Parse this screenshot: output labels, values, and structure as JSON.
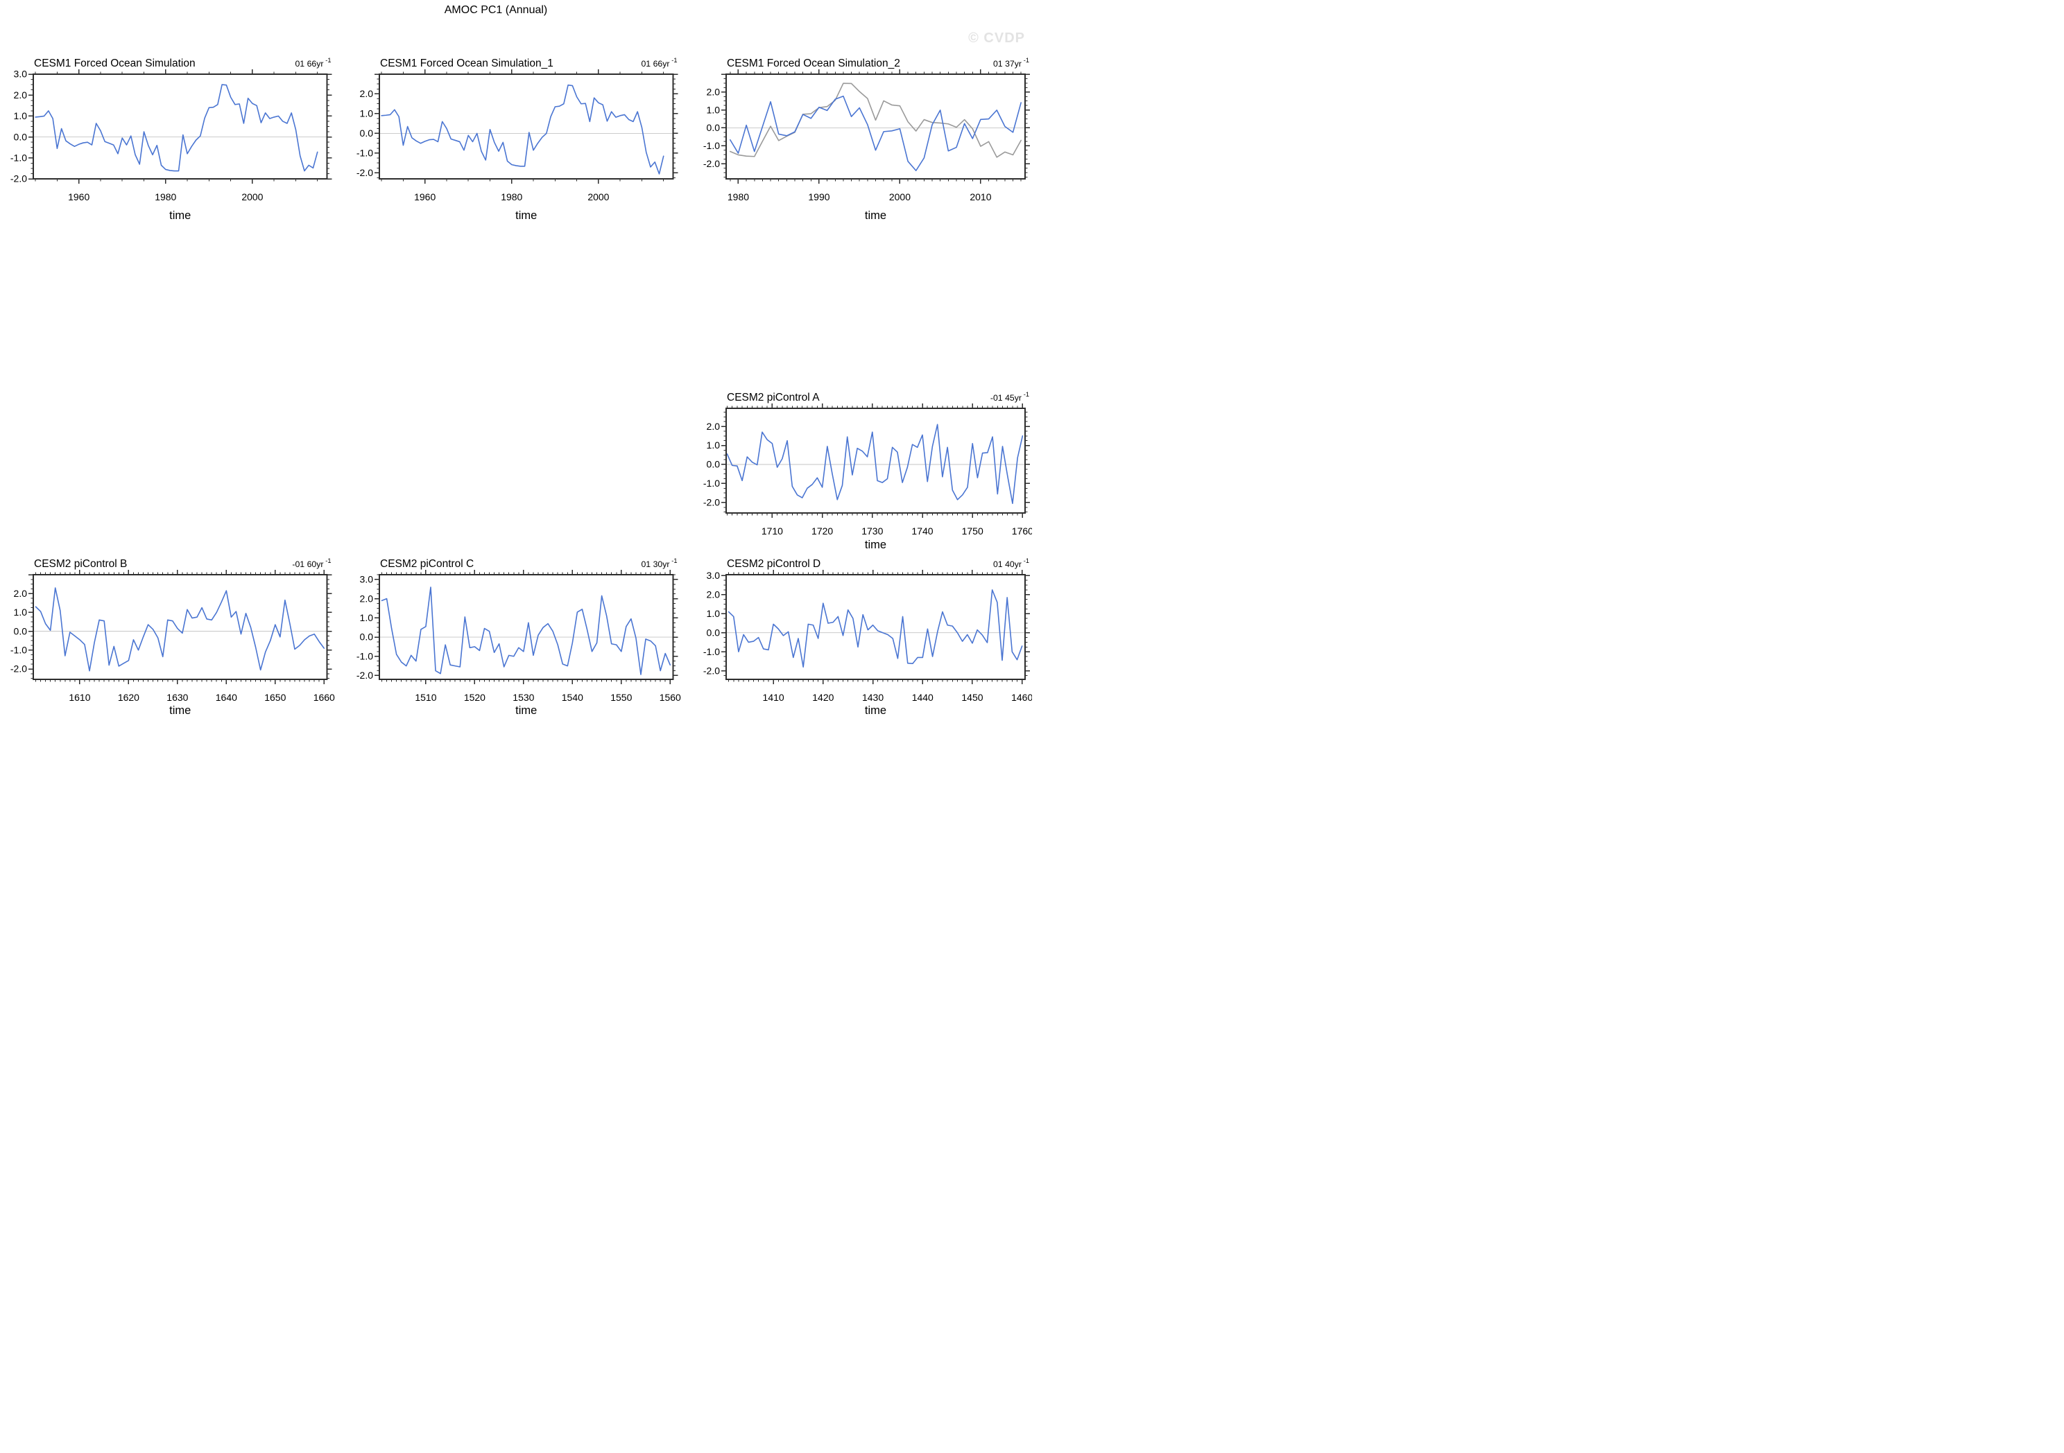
{
  "page": {
    "title": "AMOC PC1 (Annual)",
    "watermark": "© CVDP"
  },
  "colors": {
    "line_blue": "#4a75d2",
    "line_gray": "#9a9a9a",
    "zero_line": "#c4c4c4",
    "axis": "#2d2d2d",
    "watermark": "#e3e3e3"
  },
  "chart_data": [
    {
      "type": "line",
      "title": "CESM1 Forced Ocean Simulation",
      "corner_label": "01 66yr",
      "corner_sup": "-1",
      "xlabel": "time",
      "xlim": [
        1949.5,
        2017.2
      ],
      "xticks": [
        1960,
        1980,
        2000
      ],
      "x_minor_step": 5,
      "ylim": [
        -2.0,
        3.0
      ],
      "yticks": [
        3.0,
        2.0,
        1.0,
        0.0,
        -1.0,
        -2.0
      ],
      "y_minor_step": 0.25,
      "grid": "zero-line-only",
      "legend": "none",
      "series": [
        {
          "name": "blue",
          "color": "#4a75d2",
          "x_start": 1950,
          "x_step": 1,
          "values": [
            0.95,
            0.97,
            1.0,
            1.25,
            0.88,
            -0.55,
            0.4,
            -0.18,
            -0.33,
            -0.45,
            -0.35,
            -0.28,
            -0.25,
            -0.38,
            0.65,
            0.3,
            -0.22,
            -0.3,
            -0.38,
            -0.8,
            -0.05,
            -0.38,
            0.05,
            -0.85,
            -1.3,
            0.25,
            -0.4,
            -0.85,
            -0.4,
            -1.35,
            -1.55,
            -1.6,
            -1.62,
            -1.62,
            0.1,
            -0.8,
            -0.45,
            -0.15,
            0.05,
            0.9,
            1.4,
            1.42,
            1.55,
            2.5,
            2.48,
            1.9,
            1.55,
            1.58,
            0.65,
            1.85,
            1.6,
            1.5,
            0.68,
            1.15,
            0.88,
            0.95,
            1.0,
            0.75,
            0.65,
            1.15,
            0.35,
            -0.9,
            -1.62,
            -1.35,
            -1.48,
            -0.72
          ]
        }
      ]
    },
    {
      "type": "line",
      "title": "CESM1 Forced Ocean Simulation_1",
      "corner_label": "01 66yr",
      "corner_sup": "-1",
      "xlabel": "time",
      "xlim": [
        1949.5,
        2017.2
      ],
      "xticks": [
        1960,
        1980,
        2000
      ],
      "x_minor_step": 5,
      "ylim": [
        -2.3,
        3.0
      ],
      "yticks": [
        2.0,
        1.0,
        0.0,
        -1.0,
        -2.0
      ],
      "y_minor_step": 0.25,
      "grid": "zero-line-only",
      "legend": "none",
      "series": [
        {
          "name": "blue",
          "color": "#4a75d2",
          "x_start": 1950,
          "x_step": 1,
          "values": [
            0.9,
            0.92,
            0.95,
            1.2,
            0.85,
            -0.6,
            0.35,
            -0.22,
            -0.38,
            -0.5,
            -0.4,
            -0.32,
            -0.3,
            -0.42,
            0.6,
            0.25,
            -0.28,
            -0.35,
            -0.42,
            -0.85,
            -0.1,
            -0.42,
            0.0,
            -0.9,
            -1.35,
            0.2,
            -0.45,
            -0.9,
            -0.45,
            -1.4,
            -1.58,
            -1.63,
            -1.66,
            -1.66,
            0.05,
            -0.85,
            -0.5,
            -0.2,
            0.0,
            0.85,
            1.35,
            1.38,
            1.5,
            2.45,
            2.42,
            1.85,
            1.5,
            1.52,
            0.6,
            1.8,
            1.55,
            1.45,
            0.62,
            1.1,
            0.82,
            0.9,
            0.95,
            0.7,
            0.6,
            1.1,
            0.3,
            -0.95,
            -1.7,
            -1.45,
            -2.05,
            -1.15
          ]
        }
      ]
    },
    {
      "type": "line",
      "title": "CESM1 Forced Ocean Simulation_2",
      "corner_label": "01 37yr",
      "corner_sup": "-1",
      "xlabel": "time",
      "xlim": [
        1978.5,
        2015.5
      ],
      "xticks": [
        1980,
        1990,
        2000,
        2010
      ],
      "x_minor_step": 1,
      "ylim": [
        -2.85,
        3.0
      ],
      "yticks": [
        2.0,
        1.0,
        0.0,
        -1.0,
        -2.0
      ],
      "y_minor_step": 0.25,
      "grid": "zero-line-only",
      "legend": "none",
      "series": [
        {
          "name": "gray",
          "color": "#9a9a9a",
          "x_start": 1979,
          "x_step": 1,
          "values": [
            -1.32,
            -1.51,
            -1.58,
            -1.6,
            -0.75,
            0.09,
            -0.71,
            -0.47,
            -0.25,
            0.76,
            0.79,
            1.13,
            1.19,
            1.54,
            2.49,
            2.48,
            2.03,
            1.64,
            0.43,
            1.51,
            1.28,
            1.23,
            0.34,
            -0.18,
            0.46,
            0.3,
            0.27,
            0.22,
            0.03,
            0.46,
            -0.05,
            -1.03,
            -0.77,
            -1.64,
            -1.35,
            -1.51,
            -0.7
          ]
        },
        {
          "name": "blue",
          "color": "#4a75d2",
          "x_start": 1979,
          "x_step": 1,
          "values": [
            -0.67,
            -1.42,
            0.15,
            -1.32,
            0.07,
            1.46,
            -0.35,
            -0.44,
            -0.22,
            0.75,
            0.53,
            1.15,
            0.97,
            1.6,
            1.77,
            0.63,
            1.12,
            0.18,
            -1.25,
            -0.21,
            -0.17,
            -0.05,
            -1.87,
            -2.39,
            -1.68,
            0.17,
            0.99,
            -1.29,
            -1.09,
            0.24,
            -0.6,
            0.47,
            0.5,
            0.99,
            0.08,
            -0.25,
            1.41
          ]
        }
      ]
    },
    {
      "type": "line",
      "title": "CESM2 piControl A",
      "corner_label": "-01 45yr",
      "corner_sup": "-1",
      "xlabel": "time",
      "xlim": [
        1700.8,
        1760.5
      ],
      "xticks": [
        1710,
        1720,
        1730,
        1740,
        1750,
        1760
      ],
      "x_minor_step": 1,
      "ylim": [
        -2.55,
        2.95
      ],
      "yticks": [
        2.0,
        1.0,
        0.0,
        -1.0,
        -2.0
      ],
      "y_minor_step": 0.25,
      "grid": "zero-line-only",
      "legend": "none",
      "series": [
        {
          "name": "blue",
          "color": "#4a75d2",
          "x_start": 1701,
          "x_step": 1,
          "values": [
            0.55,
            -0.05,
            -0.08,
            -0.85,
            0.4,
            0.12,
            -0.02,
            1.7,
            1.3,
            1.1,
            -0.15,
            0.3,
            1.25,
            -1.15,
            -1.6,
            -1.75,
            -1.25,
            -1.05,
            -0.7,
            -1.2,
            0.95,
            -0.5,
            -1.85,
            -1.1,
            1.45,
            -0.55,
            0.85,
            0.7,
            0.4,
            1.7,
            -0.85,
            -0.95,
            -0.75,
            0.9,
            0.65,
            -0.95,
            -0.15,
            1.05,
            0.9,
            1.55,
            -0.9,
            0.95,
            2.1,
            -0.65,
            0.9,
            -1.35,
            -1.85,
            -1.6,
            -1.2,
            1.1,
            -0.7,
            0.6,
            0.62,
            1.45,
            -1.55,
            0.95,
            -0.6,
            -2.05,
            0.35,
            1.5
          ]
        }
      ]
    },
    {
      "type": "line",
      "title": "CESM2 piControl B",
      "corner_label": "-01 60yr",
      "corner_sup": "-1",
      "xlabel": "time",
      "xlim": [
        1600.5,
        1660.6
      ],
      "xticks": [
        1610,
        1620,
        1630,
        1640,
        1650,
        1660
      ],
      "x_minor_step": 1,
      "ylim": [
        -2.55,
        3.0
      ],
      "yticks": [
        2.0,
        1.0,
        0.0,
        -1.0,
        -2.0
      ],
      "y_minor_step": 0.25,
      "grid": "zero-line-only",
      "legend": "none",
      "series": [
        {
          "name": "blue",
          "color": "#4a75d2",
          "x_start": 1601,
          "x_step": 1,
          "values": [
            1.3,
            1.05,
            0.4,
            0.05,
            2.3,
            1.1,
            -1.3,
            -0.05,
            -0.25,
            -0.45,
            -0.7,
            -2.1,
            -0.6,
            0.6,
            0.55,
            -1.8,
            -0.8,
            -1.85,
            -1.7,
            -1.55,
            -0.45,
            -1.0,
            -0.3,
            0.35,
            0.1,
            -0.35,
            -1.35,
            0.6,
            0.55,
            0.15,
            -0.1,
            1.15,
            0.7,
            0.75,
            1.25,
            0.65,
            0.6,
            1.0,
            1.55,
            2.15,
            0.75,
            1.05,
            -0.15,
            0.95,
            0.2,
            -0.85,
            -2.05,
            -1.1,
            -0.5,
            0.35,
            -0.3,
            1.65,
            0.4,
            -0.95,
            -0.75,
            -0.45,
            -0.25,
            -0.15,
            -0.55,
            -0.9
          ]
        }
      ]
    },
    {
      "type": "line",
      "title": "CESM2 piControl C",
      "corner_label": "01 30yr",
      "corner_sup": "-1",
      "xlabel": "time",
      "xlim": [
        1500.5,
        1560.6
      ],
      "xticks": [
        1510,
        1520,
        1530,
        1540,
        1550,
        1560
      ],
      "x_minor_step": 1,
      "ylim": [
        -2.2,
        3.25
      ],
      "yticks": [
        3.0,
        2.0,
        1.0,
        0.0,
        -1.0,
        -2.0
      ],
      "y_minor_step": 0.25,
      "grid": "zero-line-only",
      "legend": "none",
      "series": [
        {
          "name": "blue",
          "color": "#4a75d2",
          "x_start": 1501,
          "x_step": 1,
          "values": [
            1.9,
            2.0,
            0.45,
            -0.9,
            -1.3,
            -1.5,
            -0.95,
            -1.25,
            0.4,
            0.55,
            2.6,
            -1.75,
            -1.9,
            -0.4,
            -1.45,
            -1.5,
            -1.55,
            1.05,
            -0.55,
            -0.5,
            -0.7,
            0.45,
            0.3,
            -0.8,
            -0.35,
            -1.55,
            -0.95,
            -1.0,
            -0.55,
            -0.75,
            0.75,
            -0.95,
            0.1,
            0.5,
            0.7,
            0.3,
            -0.4,
            -1.4,
            -1.5,
            -0.3,
            1.3,
            1.45,
            0.4,
            -0.75,
            -0.3,
            2.15,
            1.1,
            -0.35,
            -0.4,
            -0.75,
            0.55,
            0.95,
            -0.05,
            -1.95,
            -0.1,
            -0.2,
            -0.45,
            -1.75,
            -0.85,
            -1.45
          ]
        }
      ]
    },
    {
      "type": "line",
      "title": "CESM2 piControl D",
      "corner_label": "01 40yr",
      "corner_sup": "-1",
      "xlabel": "time",
      "xlim": [
        1400.5,
        1460.6
      ],
      "xticks": [
        1410,
        1420,
        1430,
        1440,
        1450,
        1460
      ],
      "x_minor_step": 1,
      "ylim": [
        -2.45,
        3.05
      ],
      "yticks": [
        3.0,
        2.0,
        1.0,
        0.0,
        -1.0,
        -2.0
      ],
      "y_minor_step": 0.25,
      "grid": "zero-line-only",
      "legend": "none",
      "series": [
        {
          "name": "blue",
          "color": "#4a75d2",
          "x_start": 1401,
          "x_step": 1,
          "values": [
            1.1,
            0.85,
            -1.0,
            -0.1,
            -0.5,
            -0.45,
            -0.25,
            -0.85,
            -0.9,
            0.45,
            0.2,
            -0.15,
            0.05,
            -1.3,
            -0.3,
            -1.8,
            0.45,
            0.4,
            -0.3,
            1.55,
            0.5,
            0.55,
            0.85,
            -0.15,
            1.2,
            0.75,
            -0.75,
            0.95,
            0.15,
            0.4,
            0.1,
            0.0,
            -0.1,
            -0.3,
            -1.35,
            0.85,
            -1.6,
            -1.62,
            -1.3,
            -1.3,
            0.2,
            -1.25,
            0.05,
            1.1,
            0.4,
            0.35,
            0.0,
            -0.45,
            -0.1,
            -0.55,
            0.15,
            -0.12,
            -0.52,
            2.25,
            1.6,
            -1.45,
            1.85,
            -1.0,
            -1.42,
            -0.7
          ]
        }
      ]
    }
  ]
}
